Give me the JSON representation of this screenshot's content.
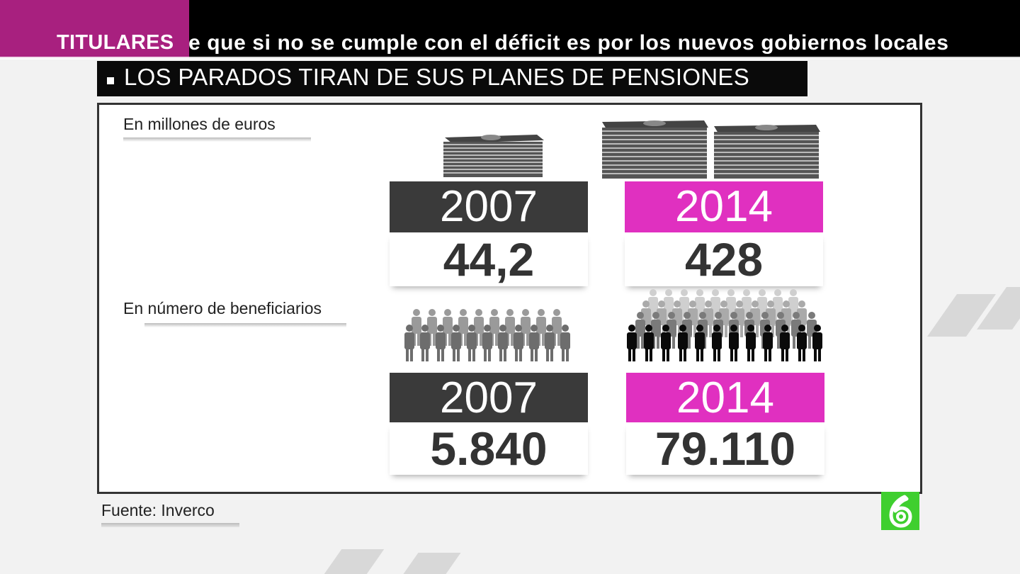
{
  "ticker": {
    "label": "TITULARES",
    "text": "e que si no se cumple con el déficit es por los nuevos gobiernos locales"
  },
  "headline": {
    "text": "LOS PARADOS TIRAN DE SUS PLANES DE PENSIONES"
  },
  "money_section": {
    "label": "En millones de euros",
    "items": [
      {
        "year": "2007",
        "value": "44,2",
        "icon": "money-stack-icon"
      },
      {
        "year": "2014",
        "value": "428",
        "icon": "money-stacks-icon"
      }
    ]
  },
  "beneficiaries_section": {
    "label": "En número de beneficiarios",
    "items": [
      {
        "year": "2007",
        "value": "5.840",
        "icon": "people-crowd-icon"
      },
      {
        "year": "2014",
        "value": "79.110",
        "icon": "people-crowd-large-icon"
      }
    ]
  },
  "source": {
    "text": "Fuente: Inverco"
  },
  "logo": {
    "icon": "channel-6-logo-icon",
    "color": "#3fcf2f"
  },
  "colors": {
    "accent": "#e030c0",
    "ticker_bg": "#a8207f",
    "dark": "#3a3a3a"
  }
}
